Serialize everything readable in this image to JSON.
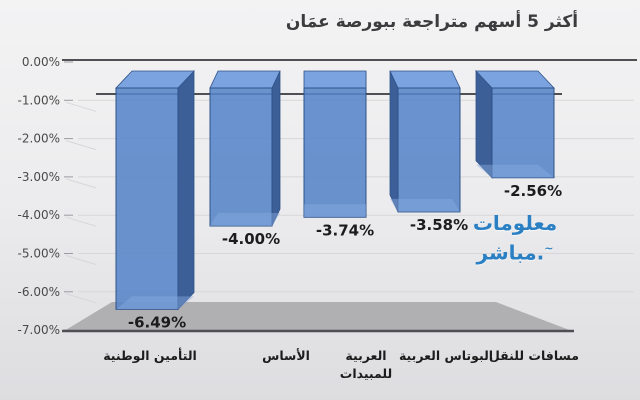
{
  "title": "أكثر 5 أسهم متراجعة ببورصة عمَان",
  "watermark": {
    "line1": "معلومات",
    "line2": ".مباشر",
    "mark": "~",
    "color": "#2b80c4"
  },
  "chart_data": {
    "type": "bar",
    "style": "3d-column-negative",
    "title": "أكثر 5 أسهم متراجعة ببورصة عمَان",
    "categories": [
      "التأمين الوطنية",
      "الأساس",
      "العربية للمبيدات",
      "البوتاس العربية",
      "مسافات للنقل"
    ],
    "category_wrap": [
      false,
      false,
      true,
      false,
      false
    ],
    "values": [
      -6.49,
      -4.0,
      -3.74,
      -3.58,
      -2.56
    ],
    "data_labels": [
      "-6.49%",
      "-4.00%",
      "-3.74%",
      "-3.58%",
      "-2.56%"
    ],
    "y_ticks": [
      "0.00%",
      "-1.00%",
      "-2.00%",
      "-3.00%",
      "-4.00%",
      "-5.00%",
      "-6.00%",
      "-7.00%"
    ],
    "ylim": [
      -7,
      0
    ],
    "xlabel": "",
    "ylabel": "",
    "grid": true,
    "legend": false,
    "colors": {
      "bar_front": "#5685c8",
      "bar_top": "#7ba3df",
      "bar_side": "#3c5f98",
      "bar_cap": "#87abdf",
      "bar_edge": "#2f5288",
      "axis_dark": "#4f4f54",
      "grid_light": "#d7d7da",
      "floor": "#b0b0b3",
      "tick_text": "#4a4a4a",
      "label_text": "#1c1c1c"
    }
  }
}
